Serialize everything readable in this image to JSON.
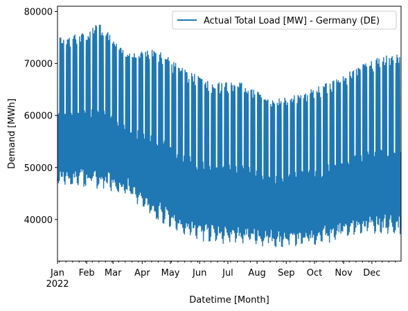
{
  "chart_data": {
    "type": "line",
    "title": "",
    "xlabel": "Datetime [Month]",
    "ylabel": "Demand [MWh]",
    "ylim": [
      32000,
      81000
    ],
    "yticks": [
      40000,
      50000,
      60000,
      70000,
      80000
    ],
    "x_tick_labels": [
      "Jan",
      "Feb",
      "Mar",
      "Apr",
      "May",
      "Jun",
      "Jul",
      "Aug",
      "Sep",
      "Oct",
      "Nov",
      "Dec"
    ],
    "x_year_label": "2022",
    "legend": {
      "placement": "top-right",
      "entries": [
        "Actual Total Load [MW] - Germany (DE)"
      ]
    },
    "grid": false,
    "series": [
      {
        "name": "Actual Total Load [MW] - Germany (DE)",
        "color": "#1f77b4",
        "monthly_daily_peak_approx": [
          74500,
          77000,
          71000,
          72000,
          68000,
          65500,
          65500,
          62000,
          63500,
          65500,
          68500,
          71000
        ],
        "monthly_night_trough_approx": [
          47500,
          47000,
          45500,
          41000,
          38000,
          36500,
          36500,
          35500,
          36000,
          36500,
          38500,
          38000
        ]
      }
    ]
  }
}
